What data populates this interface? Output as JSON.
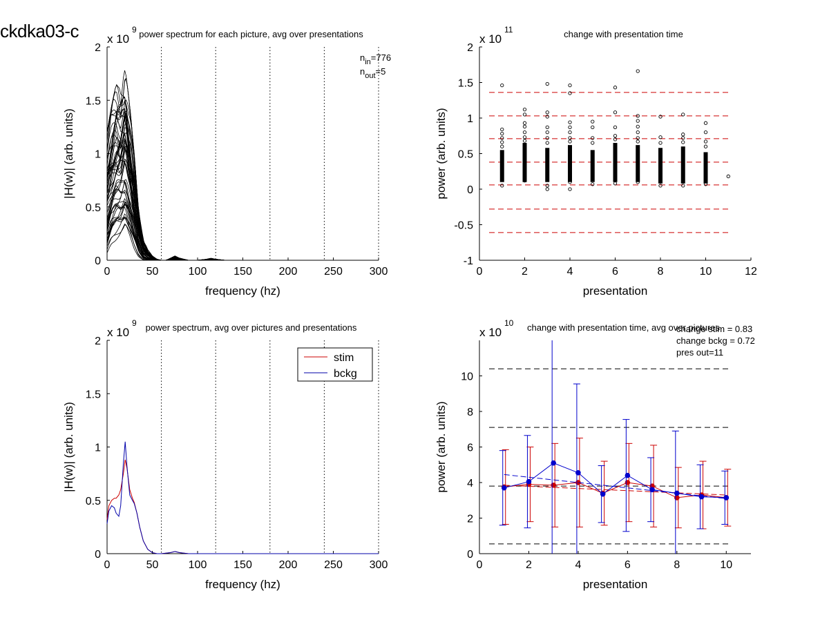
{
  "figure_id": "ckdka03-c",
  "chart_data": [
    {
      "type": "line",
      "panel": "top-left",
      "title": "power spectrum for each picture, avg over presentations",
      "xlabel": "frequency (hz)",
      "ylabel": "|H(w)| (arb. units)",
      "exponent": "x 10",
      "exponent_power": "9",
      "xlim": [
        0,
        300
      ],
      "ylim": [
        0,
        2
      ],
      "xticks": [
        0,
        50,
        100,
        150,
        200,
        250,
        300
      ],
      "yticks": [
        0,
        0.5,
        1,
        1.5,
        2
      ],
      "vlines": [
        60,
        120,
        180,
        240,
        300
      ],
      "annotation_lines": [
        {
          "main": "n",
          "sub": "in",
          "rest": "=776"
        },
        {
          "main": "n",
          "sub": "out",
          "rest": "=5"
        }
      ],
      "envelope": {
        "x": [
          0,
          5,
          10,
          15,
          20,
          25,
          30,
          35,
          40,
          45,
          50,
          55,
          60,
          65,
          70,
          75,
          80,
          85,
          90,
          95,
          100,
          110,
          115,
          120,
          130,
          300
        ],
        "low": [
          0.05,
          0.15,
          0.2,
          0.25,
          0.3,
          0.2,
          0.1,
          0.03,
          0.0,
          0.0,
          0.0,
          0.0,
          0.0,
          0.0,
          0.0,
          0.0,
          0.0,
          0.0,
          0.0,
          0.0,
          0.0,
          0.0,
          0.0,
          0.0,
          0.0,
          0.0
        ],
        "high": [
          1.2,
          1.45,
          1.65,
          1.6,
          1.8,
          1.45,
          1.0,
          0.45,
          0.2,
          0.1,
          0.04,
          0.01,
          0.0,
          0.0,
          0.02,
          0.04,
          0.02,
          0.01,
          0.0,
          0.0,
          0.0,
          0.01,
          0.02,
          0.01,
          0.0,
          0.0
        ]
      },
      "curve_count": 60,
      "line_color": "#000000",
      "grid": false
    },
    {
      "type": "scatter",
      "panel": "top-right",
      "title": "change with presentation time",
      "xlabel": "presentation",
      "ylabel": "power (arb. units)",
      "exponent": "x 10",
      "exponent_power": "11",
      "xlim": [
        0,
        12
      ],
      "ylim": [
        -1,
        2
      ],
      "xticks": [
        0,
        2,
        4,
        6,
        8,
        10,
        12
      ],
      "yticks": [
        -1,
        -0.5,
        0,
        0.5,
        1,
        1.5,
        2
      ],
      "ytick_labels": [
        "-1",
        "-0.5",
        "0",
        "0.5",
        "1",
        "1.5",
        "2"
      ],
      "hlines": [
        1.36,
        1.03,
        0.71,
        0.38,
        0.06,
        -0.28,
        -0.61
      ],
      "hline_color": "#cc0000",
      "dense_columns": [
        {
          "x": 1,
          "low": 0.1,
          "high": 0.55
        },
        {
          "x": 2,
          "low": 0.1,
          "high": 0.65
        },
        {
          "x": 3,
          "low": 0.1,
          "high": 0.58
        },
        {
          "x": 4,
          "low": 0.1,
          "high": 0.62
        },
        {
          "x": 5,
          "low": 0.1,
          "high": 0.55
        },
        {
          "x": 6,
          "low": 0.1,
          "high": 0.65
        },
        {
          "x": 7,
          "low": 0.1,
          "high": 0.62
        },
        {
          "x": 8,
          "low": 0.08,
          "high": 0.58
        },
        {
          "x": 9,
          "low": 0.08,
          "high": 0.6
        },
        {
          "x": 10,
          "low": 0.08,
          "high": 0.52
        }
      ],
      "outliers": [
        [
          1,
          1.46
        ],
        [
          1,
          0.84
        ],
        [
          1,
          0.78
        ],
        [
          1,
          0.72
        ],
        [
          1,
          0.66
        ],
        [
          1,
          0.6
        ],
        [
          1,
          0.05
        ],
        [
          2,
          1.12
        ],
        [
          2,
          1.05
        ],
        [
          2,
          0.93
        ],
        [
          2,
          0.88
        ],
        [
          2,
          0.8
        ],
        [
          2,
          0.73
        ],
        [
          2,
          0.68
        ],
        [
          2,
          0.12
        ],
        [
          3,
          1.48
        ],
        [
          3,
          1.08
        ],
        [
          3,
          1.02
        ],
        [
          3,
          0.87
        ],
        [
          3,
          0.8
        ],
        [
          3,
          0.72
        ],
        [
          3,
          0.65
        ],
        [
          3,
          0.05
        ],
        [
          3,
          0.0
        ],
        [
          4,
          1.46
        ],
        [
          4,
          1.35
        ],
        [
          4,
          0.94
        ],
        [
          4,
          0.87
        ],
        [
          4,
          0.8
        ],
        [
          4,
          0.72
        ],
        [
          4,
          0.67
        ],
        [
          4,
          0.1
        ],
        [
          4,
          0.0
        ],
        [
          5,
          0.95
        ],
        [
          5,
          0.87
        ],
        [
          5,
          0.72
        ],
        [
          5,
          0.65
        ],
        [
          5,
          0.07
        ],
        [
          6,
          1.43
        ],
        [
          6,
          1.08
        ],
        [
          6,
          0.87
        ],
        [
          6,
          0.75
        ],
        [
          6,
          0.7
        ],
        [
          6,
          0.08
        ],
        [
          7,
          1.66
        ],
        [
          7,
          1.03
        ],
        [
          7,
          0.96
        ],
        [
          7,
          0.88
        ],
        [
          7,
          0.8
        ],
        [
          7,
          0.72
        ],
        [
          7,
          0.67
        ],
        [
          7,
          0.1
        ],
        [
          8,
          1.02
        ],
        [
          8,
          0.73
        ],
        [
          8,
          0.65
        ],
        [
          8,
          0.05
        ],
        [
          9,
          1.05
        ],
        [
          9,
          0.77
        ],
        [
          9,
          0.72
        ],
        [
          9,
          0.66
        ],
        [
          9,
          0.05
        ],
        [
          10,
          0.93
        ],
        [
          10,
          0.8
        ],
        [
          10,
          0.67
        ],
        [
          10,
          0.6
        ],
        [
          10,
          0.07
        ],
        [
          11,
          0.18
        ]
      ],
      "grid": false
    },
    {
      "type": "line",
      "panel": "bottom-left",
      "title": "power spectrum, avg over pictures and presentations",
      "xlabel": "frequency (hz)",
      "ylabel": "|H(w)| (arb. units)",
      "exponent": "x 10",
      "exponent_power": "9",
      "xlim": [
        0,
        300
      ],
      "ylim": [
        0,
        2
      ],
      "xticks": [
        0,
        50,
        100,
        150,
        200,
        250,
        300
      ],
      "yticks": [
        0,
        0.5,
        1,
        1.5,
        2
      ],
      "vlines": [
        60,
        120,
        180,
        240,
        300
      ],
      "legend_position": "top-right",
      "series": [
        {
          "name": "stim",
          "color": "#cc0000",
          "x": [
            0,
            2,
            5,
            8,
            10,
            13,
            15,
            18,
            20,
            22,
            25,
            28,
            30,
            33,
            36,
            40,
            45,
            50,
            55,
            60,
            70,
            75,
            80,
            90,
            100,
            120,
            150,
            200,
            250,
            300
          ],
          "y": [
            0.32,
            0.45,
            0.5,
            0.52,
            0.52,
            0.55,
            0.6,
            0.75,
            0.88,
            0.8,
            0.6,
            0.52,
            0.48,
            0.38,
            0.25,
            0.12,
            0.04,
            0.01,
            0.0,
            0.0,
            0.01,
            0.02,
            0.01,
            0.0,
            0.0,
            0.0,
            0.0,
            0.0,
            0.0,
            0.0
          ]
        },
        {
          "name": "bckg",
          "color": "#0000aa",
          "x": [
            0,
            2,
            5,
            8,
            10,
            13,
            15,
            18,
            20,
            22,
            25,
            28,
            30,
            33,
            36,
            40,
            45,
            50,
            55,
            60,
            70,
            75,
            80,
            90,
            100,
            120,
            150,
            200,
            250,
            300
          ],
          "y": [
            0.28,
            0.4,
            0.45,
            0.43,
            0.38,
            0.35,
            0.45,
            0.85,
            1.05,
            0.82,
            0.55,
            0.5,
            0.47,
            0.38,
            0.25,
            0.12,
            0.04,
            0.01,
            0.0,
            0.0,
            0.01,
            0.02,
            0.01,
            0.0,
            0.0,
            0.0,
            0.0,
            0.0,
            0.0,
            0.0
          ]
        }
      ],
      "grid": false
    },
    {
      "type": "line",
      "panel": "bottom-right",
      "title": "change with presentation time, avg over pictures",
      "xlabel": "presentation",
      "ylabel": "power (arb. units)",
      "exponent": "x 10",
      "exponent_power": "10",
      "xlim": [
        0,
        11
      ],
      "ylim": [
        0,
        12
      ],
      "xticks": [
        0,
        2,
        4,
        6,
        8,
        10
      ],
      "yticks": [
        0,
        2,
        4,
        6,
        8,
        10
      ],
      "hlines": [
        10.4,
        7.1,
        3.8,
        0.55
      ],
      "hline_color": "#000000",
      "annotation_lines": [
        "change stim = 0.83",
        "change bckg = 0.72",
        "pres out=11"
      ],
      "categories": [
        1,
        2,
        3,
        4,
        5,
        6,
        7,
        8,
        9,
        10
      ],
      "series": [
        {
          "name": "stim",
          "color": "#cc0000",
          "values": [
            3.75,
            3.9,
            3.85,
            4.0,
            3.4,
            4.0,
            3.8,
            3.15,
            3.3,
            3.15
          ],
          "errors": [
            2.1,
            2.1,
            2.35,
            2.5,
            1.8,
            2.2,
            2.3,
            1.7,
            1.9,
            1.6
          ],
          "trend": [
            3.85,
            3.3
          ]
        },
        {
          "name": "bckg",
          "color": "#0000cc",
          "values": [
            3.7,
            4.05,
            5.1,
            4.55,
            3.35,
            4.4,
            3.6,
            3.4,
            3.2,
            3.15
          ],
          "errors": [
            2.1,
            2.6,
            8.0,
            5.0,
            1.6,
            3.15,
            1.8,
            3.5,
            1.8,
            1.5
          ],
          "trend": [
            4.45,
            3.1
          ]
        }
      ],
      "grid": false
    }
  ]
}
